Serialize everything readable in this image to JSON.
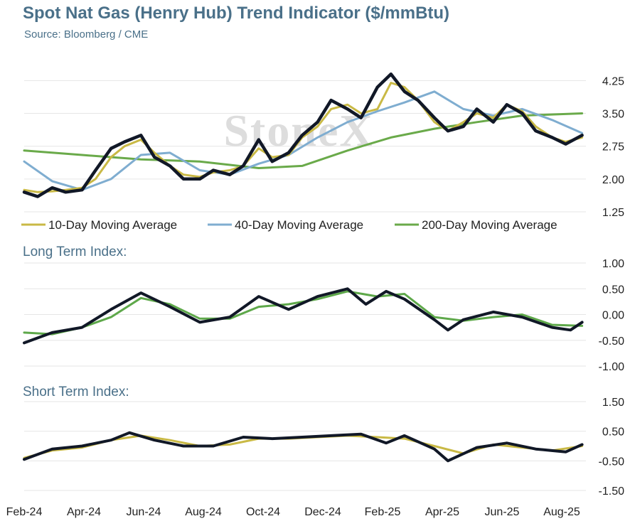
{
  "chart_data": [
    {
      "type": "line",
      "title": "Spot Nat Gas (Henry Hub) Trend Indicator ($/mmBtu)",
      "subtitle": "Source: Bloomberg / CME",
      "watermark": "StoneX",
      "x_range": [
        "2024-02-01",
        "2025-09-05"
      ],
      "x_ticks": [
        "Feb-24",
        "Apr-24",
        "Jun-24",
        "Aug-24",
        "Oct-24",
        "Dec-24",
        "Feb-25",
        "Apr-25",
        "Jun-25",
        "Aug-25"
      ],
      "ylim": [
        1.25,
        4.5
      ],
      "y_ticks": [
        "1.25",
        "2.00",
        "2.75",
        "3.50",
        "4.25"
      ],
      "grid": true,
      "legend_position": "bottom",
      "series": [
        {
          "name": "",
          "color": "#111827",
          "x": [
            "2024-02-01",
            "2024-02-15",
            "2024-03-01",
            "2024-03-15",
            "2024-04-01",
            "2024-04-15",
            "2024-05-01",
            "2024-05-15",
            "2024-06-01",
            "2024-06-15",
            "2024-07-01",
            "2024-07-15",
            "2024-08-01",
            "2024-08-15",
            "2024-09-01",
            "2024-09-15",
            "2024-10-01",
            "2024-10-15",
            "2024-11-01",
            "2024-11-15",
            "2024-12-01",
            "2024-12-15",
            "2025-01-01",
            "2025-01-15",
            "2025-02-01",
            "2025-02-15",
            "2025-03-01",
            "2025-03-15",
            "2025-04-01",
            "2025-04-15",
            "2025-05-01",
            "2025-05-15",
            "2025-06-01",
            "2025-06-15",
            "2025-07-01",
            "2025-07-15",
            "2025-08-01",
            "2025-08-15",
            "2025-09-01"
          ],
          "values": [
            1.7,
            1.6,
            1.8,
            1.7,
            1.75,
            2.2,
            2.7,
            2.85,
            3.0,
            2.5,
            2.3,
            2.0,
            2.0,
            2.2,
            2.1,
            2.3,
            2.9,
            2.4,
            2.6,
            3.0,
            3.3,
            3.8,
            3.6,
            3.4,
            4.1,
            4.4,
            4.0,
            3.8,
            3.4,
            3.1,
            3.2,
            3.6,
            3.3,
            3.7,
            3.5,
            3.1,
            2.95,
            2.8,
            3.0
          ]
        },
        {
          "name": "10-Day Moving Average",
          "color": "#c9b945",
          "x": [
            "2024-02-01",
            "2024-02-15",
            "2024-03-01",
            "2024-03-15",
            "2024-04-01",
            "2024-04-15",
            "2024-05-01",
            "2024-05-15",
            "2024-06-01",
            "2024-06-15",
            "2024-07-01",
            "2024-07-15",
            "2024-08-01",
            "2024-08-15",
            "2024-09-01",
            "2024-09-15",
            "2024-10-01",
            "2024-10-15",
            "2024-11-01",
            "2024-11-15",
            "2024-12-01",
            "2024-12-15",
            "2025-01-01",
            "2025-01-15",
            "2025-02-01",
            "2025-02-15",
            "2025-03-01",
            "2025-03-15",
            "2025-04-01",
            "2025-04-15",
            "2025-05-01",
            "2025-05-15",
            "2025-06-01",
            "2025-06-15",
            "2025-07-01",
            "2025-07-15",
            "2025-08-01",
            "2025-08-15",
            "2025-09-01"
          ],
          "values": [
            1.75,
            1.7,
            1.72,
            1.75,
            1.8,
            2.0,
            2.5,
            2.75,
            2.9,
            2.6,
            2.3,
            2.1,
            2.05,
            2.15,
            2.2,
            2.3,
            2.7,
            2.5,
            2.55,
            2.95,
            3.2,
            3.6,
            3.7,
            3.5,
            3.6,
            4.2,
            4.1,
            3.8,
            3.3,
            3.1,
            3.3,
            3.5,
            3.4,
            3.7,
            3.55,
            3.2,
            2.95,
            2.85,
            2.95
          ]
        },
        {
          "name": "40-Day Moving Average",
          "color": "#7fadd0",
          "x": [
            "2024-02-01",
            "2024-03-01",
            "2024-04-01",
            "2024-05-01",
            "2024-06-01",
            "2024-07-01",
            "2024-08-01",
            "2024-09-01",
            "2024-10-01",
            "2024-11-01",
            "2024-12-01",
            "2025-01-01",
            "2025-02-01",
            "2025-03-01",
            "2025-04-01",
            "2025-05-01",
            "2025-06-01",
            "2025-07-01",
            "2025-08-01",
            "2025-09-01"
          ],
          "values": [
            2.4,
            1.95,
            1.75,
            2.0,
            2.55,
            2.6,
            2.2,
            2.1,
            2.35,
            2.55,
            2.95,
            3.3,
            3.55,
            3.75,
            4.0,
            3.6,
            3.45,
            3.6,
            3.35,
            3.05
          ]
        },
        {
          "name": "200-Day Moving Average",
          "color": "#6aaa4a",
          "x": [
            "2024-02-01",
            "2024-04-01",
            "2024-06-01",
            "2024-08-01",
            "2024-10-01",
            "2024-11-15",
            "2025-01-01",
            "2025-02-15",
            "2025-04-01",
            "2025-05-15",
            "2025-07-01",
            "2025-09-01"
          ],
          "values": [
            2.65,
            2.55,
            2.45,
            2.4,
            2.25,
            2.3,
            2.65,
            2.95,
            3.15,
            3.3,
            3.45,
            3.5
          ]
        }
      ]
    },
    {
      "type": "line",
      "title": "Long Term Index:",
      "x_range": [
        "2024-02-01",
        "2025-09-05"
      ],
      "ylim": [
        -1.0,
        1.0
      ],
      "y_ticks": [
        "1.00",
        "0.50",
        "0.00",
        "-0.50",
        "-1.00"
      ],
      "grid": true,
      "series": [
        {
          "name": "",
          "color": "#111827",
          "x": [
            "2024-02-01",
            "2024-03-01",
            "2024-04-01",
            "2024-05-01",
            "2024-06-01",
            "2024-07-01",
            "2024-08-01",
            "2024-09-01",
            "2024-10-01",
            "2024-11-01",
            "2024-12-01",
            "2025-01-01",
            "2025-01-20",
            "2025-02-10",
            "2025-03-01",
            "2025-04-01",
            "2025-04-15",
            "2025-05-01",
            "2025-06-01",
            "2025-07-01",
            "2025-08-01",
            "2025-08-20",
            "2025-09-01"
          ],
          "values": [
            -0.55,
            -0.35,
            -0.25,
            0.1,
            0.42,
            0.15,
            -0.15,
            -0.05,
            0.35,
            0.1,
            0.35,
            0.5,
            0.2,
            0.45,
            0.3,
            -0.1,
            -0.3,
            -0.1,
            0.05,
            -0.05,
            -0.25,
            -0.3,
            -0.15
          ]
        },
        {
          "name": "",
          "color": "#5ea84a",
          "x": [
            "2024-02-01",
            "2024-03-01",
            "2024-04-01",
            "2024-05-01",
            "2024-06-01",
            "2024-07-01",
            "2024-08-01",
            "2024-09-01",
            "2024-10-01",
            "2024-11-01",
            "2024-12-01",
            "2025-01-01",
            "2025-02-01",
            "2025-03-01",
            "2025-04-01",
            "2025-05-01",
            "2025-06-01",
            "2025-07-01",
            "2025-08-01",
            "2025-09-01"
          ],
          "values": [
            -0.35,
            -0.38,
            -0.25,
            -0.05,
            0.32,
            0.2,
            -0.08,
            -0.08,
            0.15,
            0.2,
            0.3,
            0.45,
            0.35,
            0.4,
            -0.05,
            -0.12,
            -0.05,
            0.0,
            -0.2,
            -0.22
          ]
        }
      ]
    },
    {
      "type": "line",
      "title": "Short Term Index:",
      "x_range": [
        "2024-02-01",
        "2025-09-05"
      ],
      "ylim": [
        -1.5,
        1.5
      ],
      "y_ticks": [
        "1.50",
        "0.50",
        "-0.50",
        "-1.50"
      ],
      "grid": true,
      "series": [
        {
          "name": "",
          "color": "#111827",
          "x": [
            "2024-02-01",
            "2024-03-01",
            "2024-04-01",
            "2024-05-01",
            "2024-05-20",
            "2024-06-15",
            "2024-07-15",
            "2024-08-15",
            "2024-09-15",
            "2024-10-15",
            "2024-11-15",
            "2024-12-15",
            "2025-01-15",
            "2025-02-10",
            "2025-03-01",
            "2025-04-01",
            "2025-04-15",
            "2025-05-15",
            "2025-06-15",
            "2025-07-15",
            "2025-08-15",
            "2025-09-01"
          ],
          "values": [
            -0.45,
            -0.1,
            0.0,
            0.2,
            0.45,
            0.2,
            0.0,
            0.0,
            0.3,
            0.25,
            0.3,
            0.35,
            0.4,
            0.1,
            0.35,
            -0.1,
            -0.5,
            -0.05,
            0.1,
            -0.1,
            -0.2,
            0.05
          ]
        },
        {
          "name": "",
          "color": "#c9b945",
          "x": [
            "2024-02-01",
            "2024-03-01",
            "2024-04-01",
            "2024-05-01",
            "2024-06-01",
            "2024-07-01",
            "2024-08-01",
            "2024-09-01",
            "2024-10-01",
            "2024-11-01",
            "2024-12-01",
            "2025-01-01",
            "2025-02-01",
            "2025-03-01",
            "2025-04-01",
            "2025-05-01",
            "2025-06-01",
            "2025-07-01",
            "2025-08-01",
            "2025-09-01"
          ],
          "values": [
            -0.4,
            -0.15,
            -0.05,
            0.2,
            0.35,
            0.2,
            0.0,
            0.05,
            0.25,
            0.25,
            0.3,
            0.35,
            0.3,
            0.25,
            0.0,
            -0.25,
            0.05,
            -0.05,
            -0.15,
            0.0
          ]
        }
      ]
    }
  ]
}
